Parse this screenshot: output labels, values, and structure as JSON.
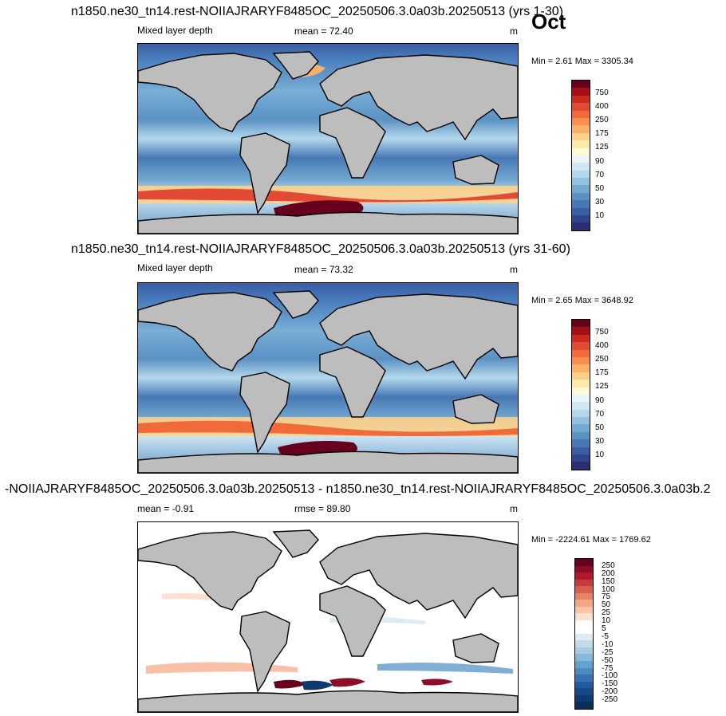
{
  "month": "Oct",
  "units": "m",
  "panels": [
    {
      "title": "n1850.ne30_tn14.rest-NOIIAJRARYF8485OC_20250506.3.0a03b.20250513 (yrs 1-30)",
      "left_label": "Mixed layer depth",
      "center_label": "mean =  72.40",
      "right_label": "m",
      "minmax": "Min =   2.61 Max = 3305.34"
    },
    {
      "title": "n1850.ne30_tn14.rest-NOIIAJRARYF8485OC_20250506.3.0a03b.20250513 (yrs 31-60)",
      "left_label": "Mixed layer depth",
      "center_label": "mean =  73.32",
      "right_label": "m",
      "minmax": "Min =   2.65 Max = 3648.92"
    },
    {
      "title": "-NOIIAJRARYF8485OC_20250506.3.0a03b.20250513 - n1850.ne30_tn14.rest-NOIIAJRARYF8485OC_20250506.3.0a03b.2",
      "left_label": "mean =  -0.91",
      "center_label": "rmse =  89.80",
      "right_label": "m",
      "minmax": "Min = -2224.61 Max = 1769.62"
    }
  ],
  "colorbar_mld": {
    "labels": [
      "750",
      "400",
      "250",
      "175",
      "125",
      "90",
      "70",
      "50",
      "30",
      "10"
    ],
    "colors": [
      "#67001f",
      "#a50f15",
      "#cb2a1f",
      "#e34a33",
      "#f06a3a",
      "#f88d4f",
      "#fbb06a",
      "#fdd08a",
      "#fee9aa",
      "#fff9d6",
      "#eaf5fb",
      "#d1e8f4",
      "#b3d8ec",
      "#92c2df",
      "#74aad2",
      "#5b92c4",
      "#4778b4",
      "#3a5ea3",
      "#2f4590",
      "#2c2d72"
    ]
  },
  "colorbar_diff": {
    "labels": [
      "250",
      "200",
      "150",
      "100",
      "75",
      "50",
      "25",
      "10",
      "5",
      "-5",
      "-10",
      "-25",
      "-50",
      "-75",
      "-100",
      "-150",
      "-200",
      "-250"
    ],
    "colors": [
      "#67001f",
      "#8c0d25",
      "#b2182b",
      "#c43c3c",
      "#d6604d",
      "#e58367",
      "#f4a582",
      "#f9c4a8",
      "#fde0d0",
      "#ffffff",
      "#ffffff",
      "#dcebf4",
      "#c3dcec",
      "#a6cce4",
      "#86b9da",
      "#65a3ce",
      "#4b8cc0",
      "#3573b0",
      "#235c9c",
      "#164a86",
      "#0f3a6f",
      "#08305c"
    ]
  }
}
